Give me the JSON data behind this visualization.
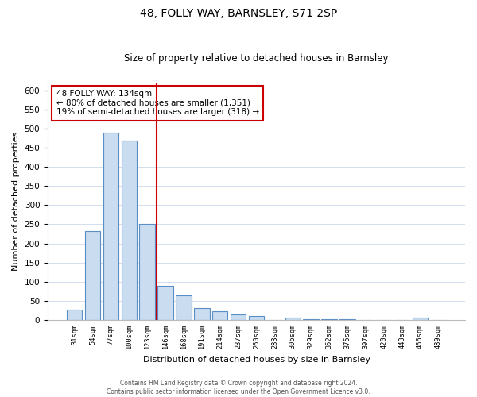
{
  "title": "48, FOLLY WAY, BARNSLEY, S71 2SP",
  "subtitle": "Size of property relative to detached houses in Barnsley",
  "xlabel": "Distribution of detached houses by size in Barnsley",
  "ylabel": "Number of detached properties",
  "bar_labels": [
    "31sqm",
    "54sqm",
    "77sqm",
    "100sqm",
    "123sqm",
    "146sqm",
    "168sqm",
    "191sqm",
    "214sqm",
    "237sqm",
    "260sqm",
    "283sqm",
    "306sqm",
    "329sqm",
    "352sqm",
    "375sqm",
    "397sqm",
    "420sqm",
    "443sqm",
    "466sqm",
    "489sqm"
  ],
  "bar_values": [
    26,
    233,
    490,
    470,
    250,
    88,
    63,
    31,
    23,
    14,
    11,
    0,
    5,
    2,
    2,
    1,
    0,
    0,
    0,
    5,
    0
  ],
  "bar_color": "#c9dcf0",
  "bar_edge_color": "#5a8fc5",
  "property_line_x": 4.5,
  "property_label": "48 FOLLY WAY: 134sqm",
  "annotation_line1": "← 80% of detached houses are smaller (1,351)",
  "annotation_line2": "19% of semi-detached houses are larger (318) →",
  "annotation_box_color": "#cc0000",
  "ylim": [
    0,
    620
  ],
  "yticks": [
    0,
    50,
    100,
    150,
    200,
    250,
    300,
    350,
    400,
    450,
    500,
    550,
    600
  ],
  "footer_line1": "Contains HM Land Registry data © Crown copyright and database right 2024.",
  "footer_line2": "Contains public sector information licensed under the Open Government Licence v3.0.",
  "background_color": "#ffffff",
  "grid_color": "#ccd8ea"
}
